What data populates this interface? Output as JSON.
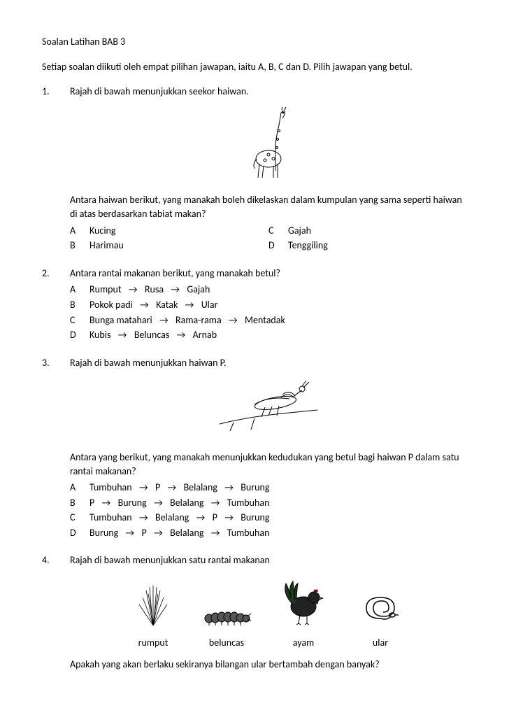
{
  "title": "Soalan Latihan BAB 3",
  "instructions": "Setiap soalan diikuti oleh empat pilihan jawapan, iaitu A, B, C dan D. Pilih jawapan yang betul.",
  "arrow": "→",
  "q1": {
    "num": "1.",
    "text": "Rajah di bawah menunjukkan seekor haiwan.",
    "followup": "Antara haiwan berikut, yang manakah boleh dikelaskan dalam kumpulan yang sama seperti haiwan di atas berdasarkan tabiat makan?",
    "A": "A",
    "A_text": "Kucing",
    "B": "B",
    "B_text": "Harimau",
    "C": "C",
    "C_text": "Gajah",
    "D": "D",
    "D_text": "Tenggiling"
  },
  "q2": {
    "num": "2.",
    "text": "Antara rantai makanan berikut, yang manakah betul?",
    "A": "A",
    "A_chain": [
      "Rumput",
      "Rusa",
      "Gajah"
    ],
    "B": "B",
    "B_chain": [
      "Pokok padi",
      "Katak",
      "Ular"
    ],
    "C": "C",
    "C_chain": [
      "Bunga matahari",
      "Rama-rama",
      "Mentadak"
    ],
    "D": "D",
    "D_chain": [
      "Kubis",
      "Beluncas",
      "Arnab"
    ]
  },
  "q3": {
    "num": "3.",
    "text": "Rajah di bawah menunjukkan haiwan P.",
    "followup": "Antara yang berikut, yang manakah menunjukkan kedudukan yang betul bagi haiwan P dalam satu rantai makanan?",
    "A": "A",
    "A_chain": [
      "Tumbuhan",
      "P",
      "Belalang",
      "Burung"
    ],
    "B": "B",
    "B_chain": [
      "P",
      "Burung",
      "Belalang",
      "Tumbuhan"
    ],
    "C": "C",
    "C_chain": [
      "Tumbuhan",
      "Belalang",
      "P",
      "Burung"
    ],
    "D": "D",
    "D_chain": [
      "Burung",
      "P",
      "Belalang",
      "Tumbuhan"
    ]
  },
  "q4": {
    "num": "4.",
    "text": "Rajah di bawah menunjukkan satu rantai makanan",
    "labels": {
      "rumput": "rumput",
      "beluncas": "beluncas",
      "ayam": "ayam",
      "ular": "ular"
    },
    "followup": "Apakah yang akan berlaku sekiranya bilangan ular bertambah dengan banyak?"
  },
  "style": {
    "text_color": "#000000",
    "background": "#ffffff",
    "font_family": "Calibri, Arial, sans-serif",
    "font_size_pt": 11
  }
}
